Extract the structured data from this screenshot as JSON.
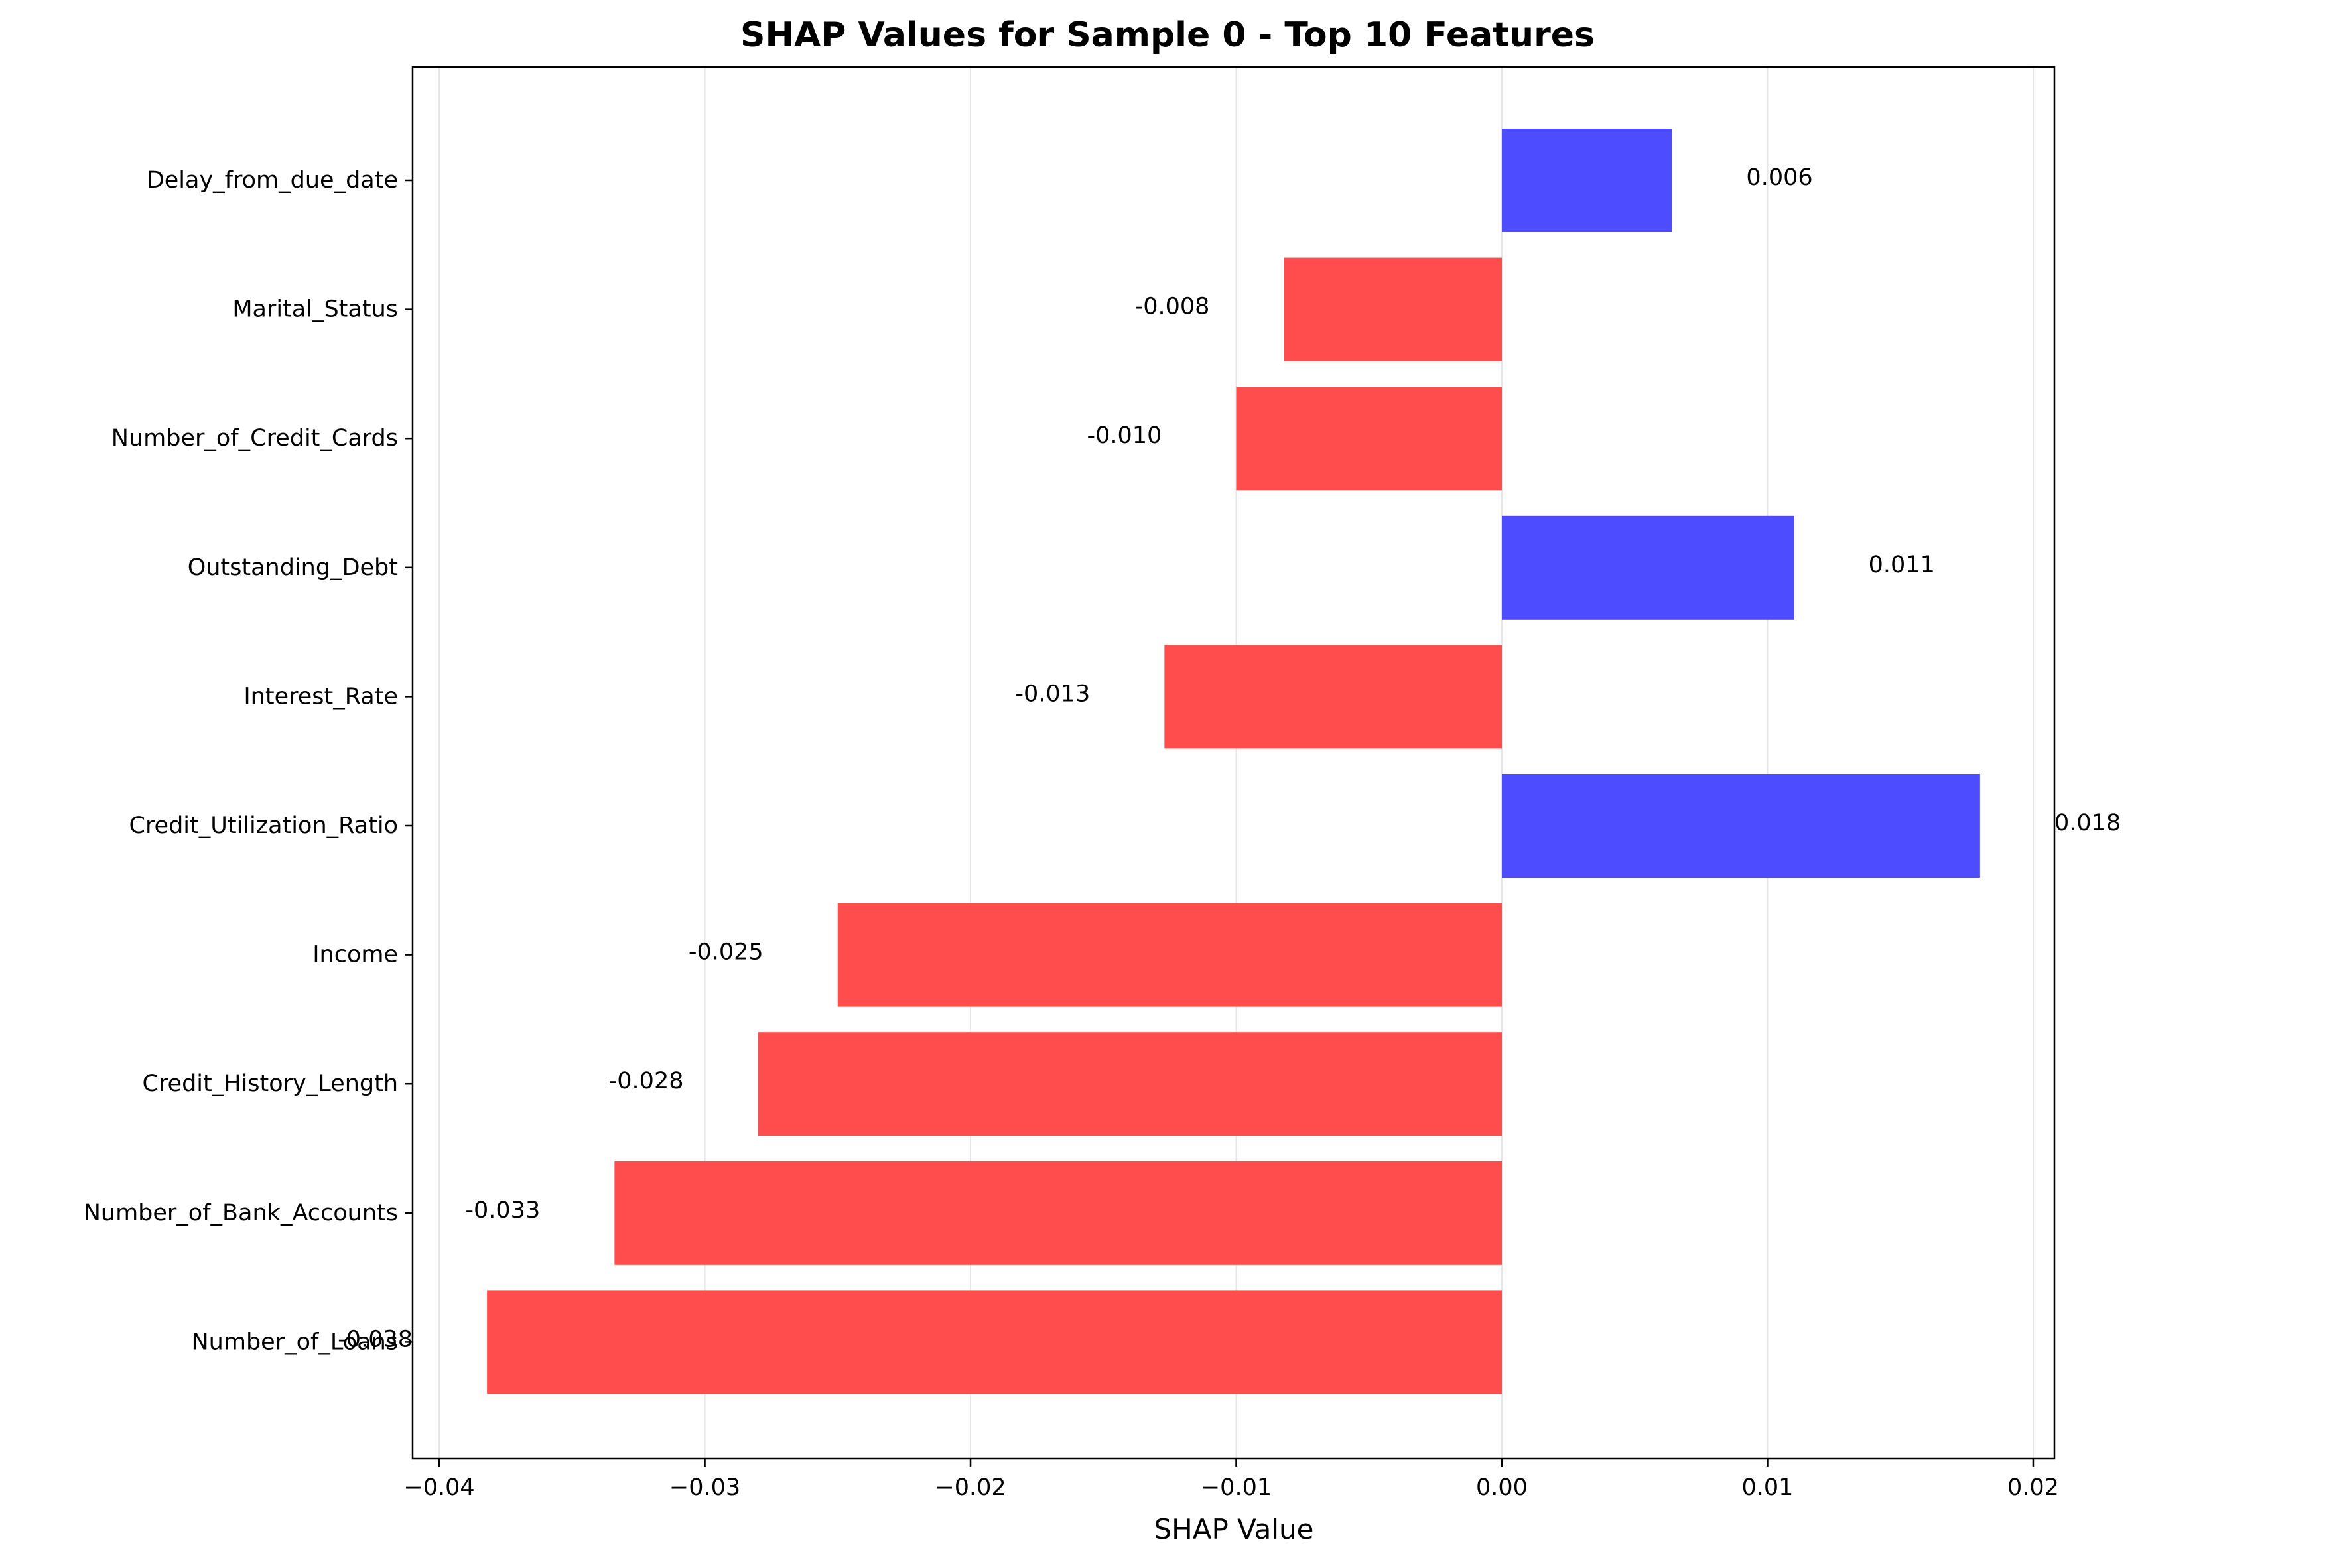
{
  "chart_data": {
    "type": "bar",
    "orientation": "horizontal",
    "title": "SHAP Values for Sample 0 - Top 10 Features",
    "xlabel": "SHAP Value",
    "ylabel": "",
    "xlim": [
      -0.041,
      0.0208
    ],
    "grid": "vertical",
    "x_ticks": [
      -0.04,
      -0.03,
      -0.02,
      -0.01,
      0.0,
      0.01,
      0.02
    ],
    "x_tick_labels": [
      "−0.04",
      "−0.03",
      "−0.02",
      "−0.01",
      "0.00",
      "0.01",
      "0.02"
    ],
    "categories": [
      "Delay_from_due_date",
      "Marital_Status",
      "Number_of_Credit_Cards",
      "Outstanding_Debt",
      "Interest_Rate",
      "Credit_Utilization_Ratio",
      "Income",
      "Credit_History_Length",
      "Number_of_Bank_Accounts",
      "Number_of_Loans"
    ],
    "values": [
      0.0064,
      -0.0082,
      -0.01,
      0.011,
      -0.0127,
      0.018,
      -0.025,
      -0.028,
      -0.0334,
      -0.0382
    ],
    "value_labels": [
      "0.006",
      "-0.008",
      "-0.010",
      "0.011",
      "-0.013",
      "0.018",
      "-0.025",
      "-0.028",
      "-0.033",
      "-0.038"
    ],
    "colors": {
      "positive": "#4d4dff",
      "negative": "#ff4d4d",
      "grid": "#e6e6e6",
      "axis": "#000000"
    }
  }
}
